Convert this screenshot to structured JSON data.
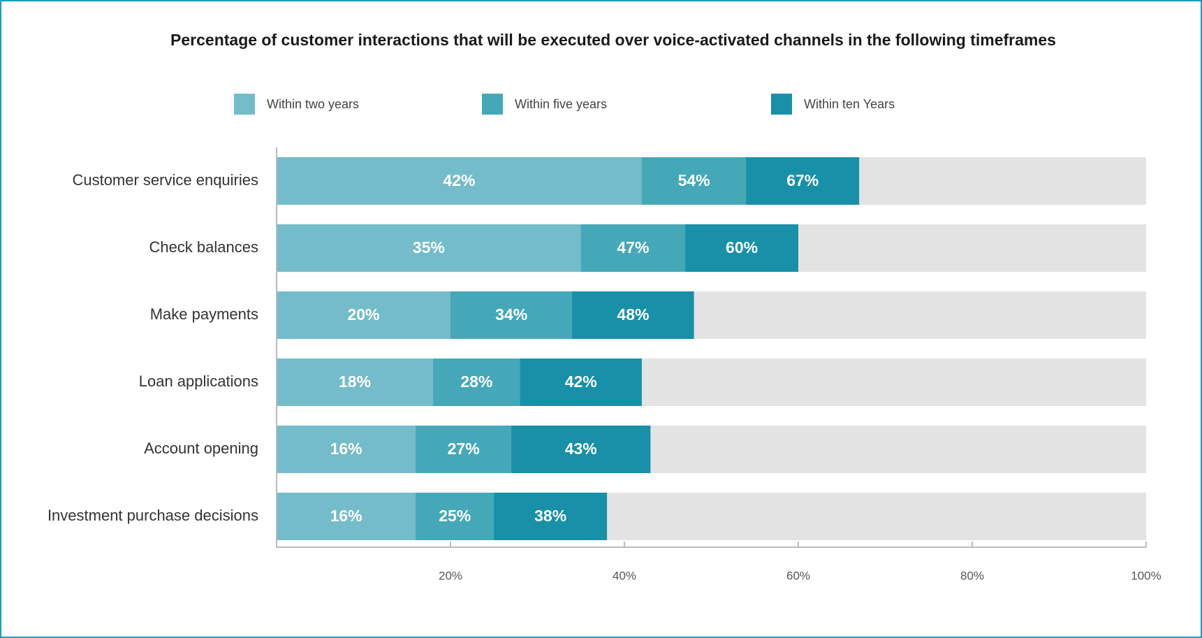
{
  "chart_data": {
    "type": "bar",
    "title": "Percentage of customer interactions that will be executed over voice-activated channels in the following timeframes",
    "categories": [
      "Customer service enquiries",
      "Check balances",
      "Make payments",
      "Loan applications",
      "Account opening",
      "Investment purchase decisions"
    ],
    "series": [
      {
        "name": "Within two years",
        "color": "#74bcc9",
        "values": [
          42,
          35,
          20,
          18,
          16,
          16
        ],
        "value_labels": [
          "42%",
          "35%",
          "20%",
          "18%",
          "16%",
          "16%"
        ]
      },
      {
        "name": "Within five years",
        "color": "#45a8b8",
        "values": [
          54,
          47,
          34,
          28,
          27,
          25
        ],
        "value_labels": [
          "54%",
          "47%",
          "34%",
          "28%",
          "27%",
          "25%"
        ]
      },
      {
        "name": "Within ten Years",
        "color": "#1790a8",
        "values": [
          67,
          60,
          48,
          42,
          43,
          38
        ],
        "value_labels": [
          "67%",
          "60%",
          "48%",
          "42%",
          "43%",
          "38%"
        ]
      }
    ],
    "xlim": [
      0,
      100
    ],
    "xticks": [
      {
        "value": 20,
        "label": "20%"
      },
      {
        "value": 40,
        "label": "40%"
      },
      {
        "value": 60,
        "label": "60%"
      },
      {
        "value": 80,
        "label": "80%"
      },
      {
        "value": 100,
        "label": "100%"
      }
    ]
  }
}
